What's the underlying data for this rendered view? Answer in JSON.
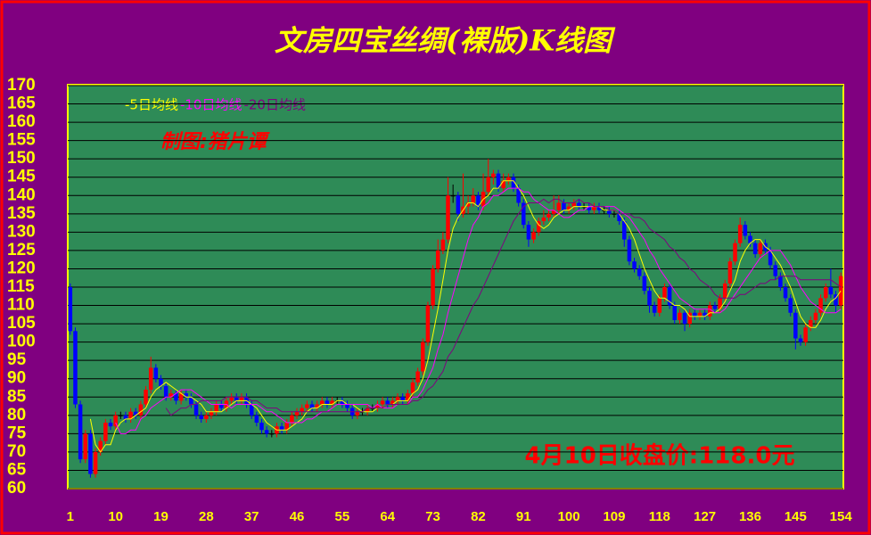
{
  "chart_data": {
    "type": "candlestick",
    "title": "文房四宝丝绸(裸版)K线图",
    "annotation": "制图:猪片谭",
    "footnote": "4月10日收盘价:118.0元",
    "categories": [
      1,
      null,
      null,
      null,
      null,
      null,
      null,
      null,
      null,
      10,
      null,
      null,
      null,
      null,
      null,
      null,
      null,
      null,
      19,
      null,
      null,
      null,
      null,
      null,
      null,
      null,
      null,
      28,
      null,
      null,
      null,
      null,
      null,
      null,
      null,
      null,
      37,
      null,
      null,
      null,
      null,
      null,
      null,
      null,
      null,
      46,
      null,
      null,
      null,
      null,
      null,
      null,
      null,
      null,
      55,
      null,
      null,
      null,
      null,
      null,
      null,
      null,
      null,
      64,
      null,
      null,
      null,
      null,
      null,
      null,
      null,
      null,
      73,
      null,
      null,
      null,
      null,
      null,
      null,
      null,
      null,
      82,
      null,
      null,
      null,
      null,
      null,
      null,
      null,
      null,
      91,
      null,
      null,
      null,
      null,
      null,
      null,
      null,
      null,
      100,
      null,
      null,
      null,
      null,
      null,
      null,
      null,
      null,
      109,
      null,
      null,
      null,
      null,
      null,
      null,
      null,
      null,
      118,
      null,
      null,
      null,
      null,
      null,
      null,
      null,
      null,
      127,
      null,
      null,
      null,
      null,
      null,
      null,
      null,
      null,
      136,
      null,
      null,
      null,
      null,
      null,
      null,
      null,
      null,
      145,
      null,
      null,
      null,
      null,
      null,
      null,
      null,
      null,
      154
    ],
    "open": [
      115,
      103,
      83,
      68,
      75,
      64,
      70,
      73,
      78,
      77,
      80,
      80,
      79,
      81,
      80,
      83,
      87,
      93,
      90,
      88,
      85,
      86,
      84,
      86,
      85,
      83,
      80,
      79,
      80,
      81,
      83,
      82,
      84,
      85,
      84,
      85,
      83,
      80,
      78,
      76,
      75,
      75,
      77,
      76,
      78,
      80,
      81,
      82,
      83,
      82,
      83,
      84,
      83,
      84,
      84,
      83,
      82,
      80,
      81,
      81,
      82,
      82,
      83,
      84,
      83,
      84,
      85,
      84,
      86,
      89,
      92,
      100,
      110,
      120,
      125,
      128,
      140,
      140,
      135,
      137,
      138,
      140,
      137,
      141,
      145,
      146,
      142,
      144,
      145,
      142,
      138,
      132,
      128,
      130,
      133,
      134,
      135,
      136,
      138,
      136,
      137,
      138,
      137,
      137,
      136,
      137,
      136,
      136,
      135,
      135,
      133,
      128,
      122,
      120,
      118,
      114,
      110,
      108,
      112,
      115,
      110,
      106,
      108,
      105,
      108,
      107,
      108,
      107,
      110,
      109,
      112,
      116,
      122,
      127,
      132,
      129,
      127,
      124,
      127,
      125,
      121,
      118,
      115,
      112,
      108,
      101,
      100,
      104,
      106,
      108,
      112,
      115,
      113,
      110
    ],
    "close": [
      103,
      83,
      68,
      75,
      64,
      70,
      73,
      78,
      77,
      80,
      80,
      79,
      81,
      80,
      83,
      87,
      93,
      90,
      88,
      85,
      86,
      84,
      86,
      85,
      83,
      80,
      79,
      80,
      81,
      83,
      82,
      84,
      85,
      84,
      85,
      83,
      80,
      78,
      76,
      75,
      75,
      77,
      76,
      78,
      80,
      81,
      82,
      83,
      82,
      83,
      84,
      83,
      84,
      84,
      83,
      82,
      80,
      81,
      81,
      82,
      82,
      83,
      84,
      83,
      84,
      85,
      84,
      86,
      89,
      92,
      100,
      110,
      120,
      125,
      128,
      140,
      140,
      135,
      137,
      138,
      140,
      137,
      141,
      145,
      146,
      142,
      144,
      145,
      142,
      138,
      132,
      128,
      130,
      133,
      134,
      135,
      136,
      138,
      136,
      137,
      138,
      137,
      137,
      136,
      137,
      136,
      136,
      135,
      135,
      133,
      128,
      122,
      120,
      118,
      114,
      110,
      108,
      112,
      115,
      110,
      106,
      108,
      105,
      108,
      107,
      108,
      107,
      110,
      109,
      112,
      116,
      122,
      127,
      132,
      129,
      127,
      124,
      127,
      125,
      121,
      118,
      115,
      112,
      108,
      101,
      100,
      104,
      106,
      108,
      112,
      115,
      113,
      110,
      118
    ],
    "high": [
      116,
      104,
      84,
      76,
      76,
      71,
      74,
      79,
      79,
      81,
      81,
      81,
      82,
      82,
      84,
      88,
      96,
      94,
      91,
      89,
      87,
      87,
      87,
      87,
      86,
      84,
      81,
      81,
      82,
      84,
      84,
      85,
      86,
      86,
      86,
      86,
      84,
      81,
      79,
      77,
      76,
      78,
      78,
      79,
      81,
      82,
      83,
      84,
      84,
      84,
      85,
      85,
      85,
      85,
      85,
      84,
      83,
      82,
      82,
      83,
      83,
      84,
      85,
      85,
      85,
      86,
      86,
      87,
      90,
      93,
      101,
      111,
      121,
      128,
      130,
      145,
      143,
      141,
      146,
      140,
      142,
      141,
      146,
      150,
      147,
      147,
      146,
      146,
      146,
      143,
      139,
      133,
      131,
      134,
      136,
      136,
      140,
      140,
      139,
      138,
      139,
      139,
      138,
      138,
      138,
      138,
      137,
      137,
      136,
      136,
      134,
      129,
      123,
      121,
      119,
      115,
      111,
      113,
      116,
      116,
      111,
      109,
      109,
      109,
      109,
      109,
      109,
      111,
      111,
      113,
      117,
      123,
      128,
      134,
      133,
      130,
      128,
      128,
      128,
      126,
      122,
      119,
      116,
      113,
      109,
      102,
      105,
      107,
      109,
      113,
      116,
      120,
      114,
      119
    ],
    "low": [
      102,
      82,
      67,
      67,
      63,
      63,
      69,
      72,
      76,
      76,
      79,
      78,
      78,
      79,
      79,
      82,
      86,
      89,
      87,
      84,
      84,
      83,
      83,
      84,
      82,
      79,
      78,
      78,
      79,
      80,
      81,
      81,
      83,
      83,
      83,
      82,
      79,
      77,
      75,
      74,
      74,
      74,
      75,
      75,
      77,
      79,
      80,
      81,
      81,
      81,
      82,
      82,
      82,
      83,
      82,
      81,
      79,
      79,
      80,
      80,
      81,
      81,
      82,
      82,
      82,
      83,
      83,
      83,
      85,
      88,
      91,
      99,
      109,
      119,
      124,
      127,
      138,
      133,
      134,
      135,
      137,
      136,
      136,
      140,
      143,
      141,
      141,
      143,
      141,
      137,
      131,
      126,
      127,
      129,
      132,
      133,
      134,
      135,
      135,
      135,
      136,
      136,
      136,
      135,
      135,
      135,
      135,
      134,
      134,
      132,
      126,
      121,
      119,
      117,
      113,
      108,
      107,
      107,
      111,
      109,
      105,
      105,
      103,
      104,
      106,
      106,
      106,
      106,
      108,
      108,
      111,
      115,
      121,
      126,
      128,
      126,
      123,
      123,
      124,
      120,
      117,
      114,
      111,
      107,
      98,
      99,
      99,
      103,
      105,
      107,
      111,
      112,
      108,
      109
    ],
    "up_color": "#ff0000",
    "down_color": "#0000ff",
    "lines": [
      {
        "name": "-5日均线",
        "color": "#ffff00",
        "values": [
          null,
          null,
          null,
          null,
          79,
          72,
          70,
          72,
          72,
          76,
          78,
          79,
          79,
          80,
          81,
          82,
          85,
          87,
          88,
          89,
          88,
          87,
          86,
          85,
          85,
          84,
          83,
          81,
          81,
          81,
          81,
          82,
          83,
          84,
          84,
          84,
          83,
          82,
          80,
          78,
          77,
          76,
          76,
          76,
          77,
          78,
          79,
          81,
          82,
          82,
          83,
          83,
          83,
          84,
          84,
          83,
          83,
          82,
          81,
          81,
          81,
          82,
          82,
          83,
          83,
          84,
          84,
          84,
          86,
          87,
          90,
          95,
          102,
          109,
          117,
          125,
          131,
          134,
          136,
          138,
          138,
          137,
          139,
          140,
          142,
          142,
          144,
          144,
          144,
          142,
          140,
          137,
          134,
          132,
          131,
          132,
          134,
          135,
          136,
          136,
          137,
          137,
          137,
          137,
          137,
          137,
          136,
          136,
          136,
          135,
          133,
          131,
          128,
          124,
          120,
          117,
          114,
          112,
          112,
          111,
          110,
          110,
          109,
          107,
          107,
          107,
          107,
          108,
          108,
          109,
          111,
          114,
          117,
          122,
          125,
          127,
          128,
          128,
          126,
          125,
          123,
          121,
          118,
          115,
          111,
          107,
          105,
          104,
          104,
          106,
          109,
          111,
          112,
          114
        ]
      },
      {
        "name": "-10日均线",
        "color": "#ff00ff",
        "values": [
          null,
          null,
          null,
          null,
          null,
          null,
          null,
          null,
          null,
          78,
          75,
          75,
          76,
          76,
          79,
          80,
          82,
          83,
          84,
          85,
          85,
          86,
          87,
          87,
          87,
          86,
          85,
          84,
          83,
          83,
          83,
          83,
          82,
          83,
          83,
          83,
          83,
          83,
          82,
          81,
          81,
          80,
          79,
          78,
          78,
          78,
          78,
          79,
          79,
          80,
          81,
          81,
          82,
          83,
          83,
          83,
          83,
          83,
          83,
          83,
          82,
          83,
          82,
          82,
          82,
          83,
          83,
          83,
          85,
          85,
          87,
          90,
          93,
          98,
          102,
          108,
          113,
          118,
          123,
          128,
          132,
          134,
          137,
          138,
          140,
          140,
          141,
          142,
          142,
          142,
          141,
          141,
          139,
          138,
          137,
          136,
          136,
          135,
          134,
          134,
          135,
          136,
          136,
          137,
          137,
          137,
          137,
          137,
          137,
          136,
          135,
          134,
          132,
          130,
          128,
          125,
          123,
          120,
          118,
          116,
          114,
          112,
          111,
          110,
          109,
          109,
          109,
          109,
          108,
          108,
          109,
          111,
          113,
          115,
          117,
          119,
          121,
          123,
          124,
          125,
          125,
          125,
          123,
          121,
          118,
          115,
          113,
          111,
          110,
          109,
          108,
          108,
          108,
          109
        ]
      },
      {
        "name": "-20日均线",
        "color": "#800080",
        "values": [
          null,
          null,
          null,
          null,
          null,
          null,
          null,
          null,
          null,
          null,
          null,
          null,
          null,
          null,
          null,
          null,
          null,
          null,
          null,
          82,
          80,
          81,
          82,
          82,
          83,
          83,
          84,
          84,
          84,
          84,
          84,
          85,
          85,
          85,
          85,
          85,
          84,
          84,
          83,
          82,
          82,
          82,
          81,
          81,
          81,
          81,
          81,
          81,
          81,
          81,
          81,
          81,
          81,
          81,
          81,
          81,
          81,
          81,
          81,
          82,
          82,
          82,
          82,
          83,
          83,
          83,
          83,
          83,
          84,
          84,
          85,
          87,
          88,
          90,
          92,
          96,
          98,
          101,
          104,
          107,
          110,
          112,
          115,
          118,
          121,
          124,
          127,
          130,
          133,
          135,
          137,
          138,
          138,
          138,
          139,
          138,
          139,
          139,
          138,
          138,
          138,
          139,
          138,
          138,
          137,
          137,
          137,
          136,
          136,
          135,
          135,
          135,
          134,
          134,
          133,
          131,
          130,
          129,
          128,
          126,
          125,
          123,
          122,
          120,
          119,
          117,
          116,
          115,
          113,
          112,
          112,
          112,
          112,
          113,
          113,
          114,
          115,
          116,
          116,
          117,
          117,
          118,
          118,
          118,
          118,
          117,
          117,
          117,
          117,
          117,
          117,
          117,
          116,
          115
        ]
      }
    ],
    "ylim": [
      60,
      170
    ],
    "yticks": [
      60,
      65,
      70,
      75,
      80,
      85,
      90,
      95,
      100,
      105,
      110,
      115,
      120,
      125,
      130,
      135,
      140,
      145,
      150,
      155,
      160,
      165,
      170
    ],
    "grid": true
  }
}
